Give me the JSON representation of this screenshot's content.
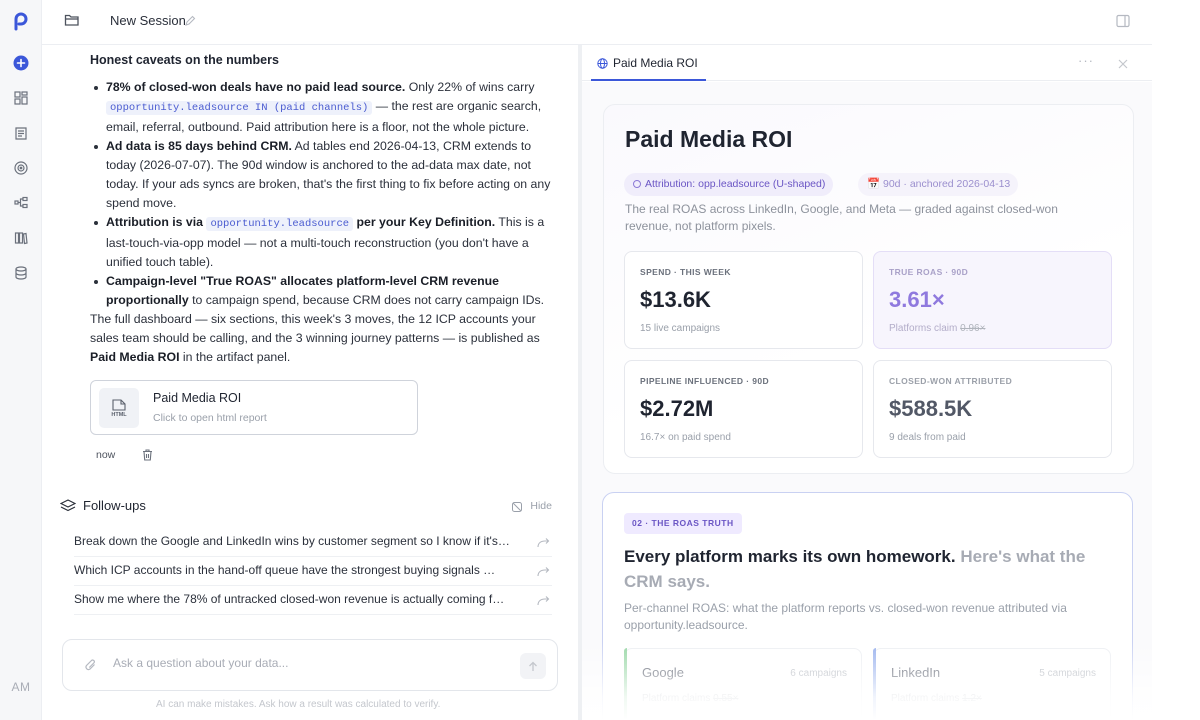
{
  "rail": {
    "avatar": "AM"
  },
  "topbar": {
    "session_title": "New Session"
  },
  "chat": {
    "heading": "Honest caveats on the numbers",
    "bullet1_bold": "78% of closed-won deals have no paid lead source.",
    "bullet1_text_a": " Only 22% of wins carry ",
    "bullet1_code": "opportunity.leadsource IN (paid channels)",
    "bullet1_text_b": " — the rest are organic search, email, referral, outbound. Paid attribution here is a floor, not the whole picture.",
    "bullet2_bold": "Ad data is 85 days behind CRM.",
    "bullet2_text": " Ad tables end 2026-04-13, CRM extends to today (2026-07-07). The 90d window is anchored to the ad-data max date, not today. If your ads syncs are broken, that's the first thing to fix before acting on any spend move.",
    "bullet3_bold_a": "Attribution is via ",
    "bullet3_code": "opportunity.leadsource",
    "bullet3_bold_b": " per your Key Definition.",
    "bullet3_text": " This is a last-touch-via-opp model — not a multi-touch reconstruction (you don't have a unified touch table).",
    "bullet4_bold": "Campaign-level \"True ROAS\" allocates platform-level CRM revenue proportionally",
    "bullet4_text": " to campaign spend, because CRM does not carry campaign IDs.",
    "closing_text": "The full dashboard — six sections, this week's 3 moves, the 12 ICP accounts your sales team should be calling, and the 3 winning journey patterns — is published as ",
    "closing_bold": "Paid Media ROI",
    "closing_tail": " in the artifact panel.",
    "artifact": {
      "icon_label": "HTML",
      "title": "Paid Media ROI",
      "subtitle": "Click to open html report"
    },
    "timestamp": "now",
    "followups_title": "Follow-ups",
    "hide_label": "Hide",
    "followups": [
      "Break down the Google and LinkedIn wins by customer segment so I know if it's…",
      "Which ICP accounts in the hand-off queue have the strongest buying signals …",
      "Show me where the 78% of untracked closed-won revenue is actually coming f…"
    ],
    "ask_placeholder": "Ask a question about your data...",
    "disclaimer": "AI can make mistakes. Ask how a result was calculated to verify."
  },
  "panel": {
    "tab_label": "Paid Media ROI",
    "report_title": "Paid Media ROI",
    "pill_attribution": "Attribution: opp.leadsource (U-shaped)",
    "pill_date": "📅 90d · anchored 2026-04-13",
    "subtitle": "The real ROAS across LinkedIn, Google, and Meta — graded against closed-won revenue, not platform pixels.",
    "kpis": [
      {
        "label": "SPEND · THIS WEEK",
        "value": "$13.6K",
        "note": "15 live campaigns"
      },
      {
        "label": "TRUE ROAS · 90D",
        "value": "3.61×",
        "note_a": "Platforms claim ",
        "note_strike": "0.96×"
      },
      {
        "label": "PIPELINE INFLUENCED · 90D",
        "value": "$2.72M",
        "note": "16.7× on paid spend"
      },
      {
        "label": "CLOSED-WON ATTRIBUTED",
        "value": "$588.5K",
        "note": "9 deals from paid"
      }
    ],
    "section_badge": "02 · THE ROAS TRUTH",
    "headline_a": "Every platform marks its own homework.",
    "headline_b": " Here's what the CRM says.",
    "section_desc": "Per-channel ROAS: what the platform reports vs. closed-won revenue attributed via opportunity.leadsource.",
    "channels": [
      {
        "name": "Google",
        "count": "6 campaigns",
        "claim_a": "Platform claims ",
        "claim_strike": "0.55×",
        "color": "#9bd8a8"
      },
      {
        "name": "LinkedIn",
        "count": "5 campaigns",
        "claim_a": "Platform claims ",
        "claim_strike": "1.2×",
        "color": "#9db4ee"
      }
    ]
  },
  "colors": {
    "accent": "#3b57d9",
    "purple": "#6a55c4",
    "roas": "#8f79de"
  }
}
